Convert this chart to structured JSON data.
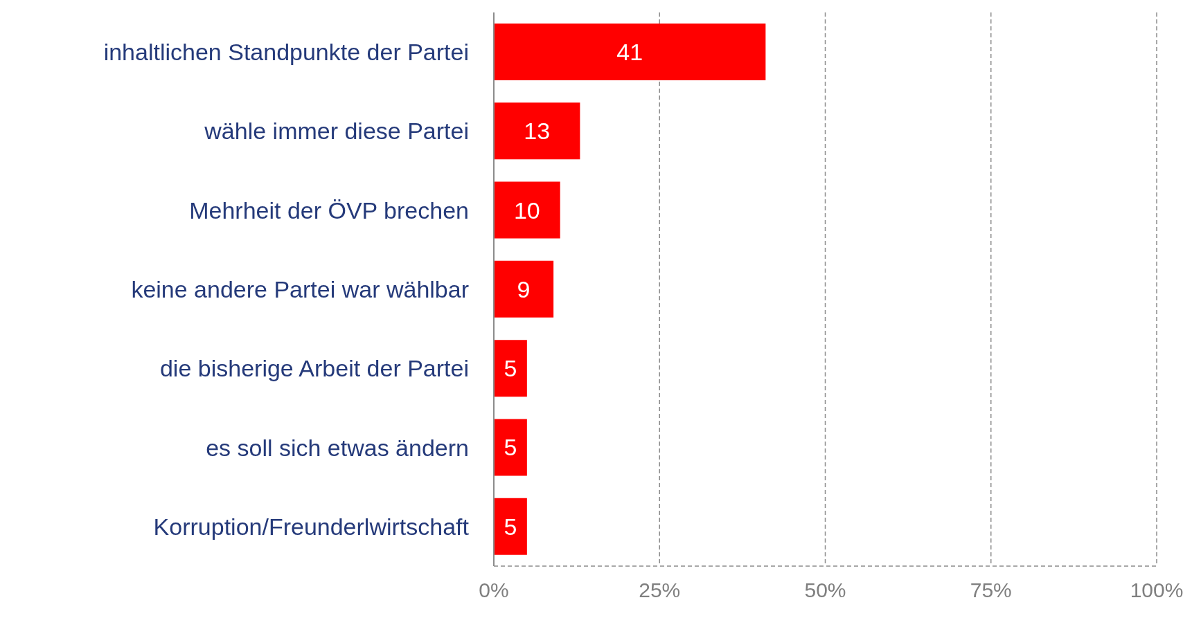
{
  "chart_data": {
    "type": "bar",
    "orientation": "horizontal",
    "categories": [
      "inhaltlichen Standpunkte der Partei",
      "wähle immer diese Partei",
      "Mehrheit der ÖVP brechen",
      "keine andere Partei war wählbar",
      "die bisherige Arbeit der Partei",
      "es soll sich etwas ändern",
      "Korruption/Freunderlwirtschaft"
    ],
    "values": [
      41,
      13,
      10,
      9,
      5,
      5,
      5
    ],
    "color": "#ff0000",
    "xlim": [
      0,
      100
    ],
    "xticks": [
      {
        "value": 0,
        "label": "0%"
      },
      {
        "value": 25,
        "label": "25%"
      },
      {
        "value": 50,
        "label": "50%"
      },
      {
        "value": 75,
        "label": "75%"
      },
      {
        "value": 100,
        "label": "100%"
      }
    ],
    "grid": "x",
    "data_labels": true
  }
}
